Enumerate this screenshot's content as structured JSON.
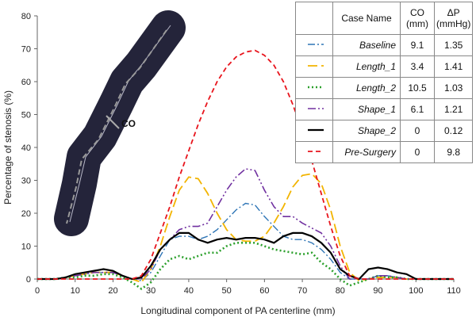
{
  "chart_data": {
    "type": "line",
    "xlabel": "Longitudinal component of PA centerline (mm)",
    "ylabel": "Percentage of stenosis (%)",
    "annotation": "CO",
    "xlim": [
      0,
      110
    ],
    "xticks": [
      0,
      10,
      20,
      30,
      40,
      50,
      60,
      70,
      80,
      90,
      100,
      110
    ],
    "ylim": [
      0,
      80
    ],
    "yticks": [
      0,
      10,
      20,
      30,
      40,
      50,
      60,
      70,
      80
    ],
    "grid": false,
    "table_columns": [
      "Case Name",
      "CO (mm)",
      "ΔP (mmHg)"
    ],
    "x": [
      0,
      2.5,
      5,
      7.5,
      10,
      12.5,
      15,
      17.5,
      20,
      22.5,
      25,
      27.5,
      30,
      32.5,
      35,
      37.5,
      40,
      42.5,
      45,
      47.5,
      50,
      52.5,
      55,
      57.5,
      60,
      62.5,
      65,
      67.5,
      70,
      72.5,
      75,
      77.5,
      80,
      82.5,
      85,
      87.5,
      90,
      92.5,
      95,
      97.5,
      100,
      102.5,
      105,
      107.5,
      110
    ],
    "series": [
      {
        "name": "Baseline",
        "color": "#2e75b6",
        "dash": "9,3,2,3",
        "width": 1.4,
        "co": 9.1,
        "dp": 1.35,
        "values": [
          0,
          0,
          0,
          0.5,
          1,
          1.5,
          2,
          2,
          2,
          1,
          0,
          -0.5,
          2,
          7,
          12,
          13,
          13,
          12,
          13,
          15,
          18,
          21,
          23,
          22.5,
          19,
          16,
          13,
          12,
          12,
          11,
          9,
          6,
          2,
          0,
          0,
          0,
          1,
          1,
          0.5,
          0,
          0,
          0,
          0,
          0,
          0
        ]
      },
      {
        "name": "Length_1",
        "color": "#f2b400",
        "dash": "12,5",
        "width": 1.8,
        "co": 3.4,
        "dp": 1.41,
        "values": [
          0,
          0,
          0,
          0.5,
          1,
          1.5,
          2,
          2,
          2,
          1,
          0,
          -1,
          3,
          10,
          19,
          27,
          31,
          30.5,
          26,
          20,
          15,
          12,
          11.5,
          11.5,
          13,
          17,
          22,
          28,
          31.5,
          32,
          29,
          21,
          10,
          2,
          -0.5,
          0,
          0.5,
          0.5,
          0.5,
          0,
          0,
          0,
          0,
          0,
          0
        ]
      },
      {
        "name": "Length_2",
        "color": "#2ca02c",
        "dash": "2,3",
        "width": 2.6,
        "co": 10.5,
        "dp": 1.03,
        "values": [
          0,
          0,
          0,
          0.5,
          0.5,
          1,
          1,
          1.5,
          1.5,
          0.5,
          -1,
          -3,
          -1,
          3,
          6,
          7,
          6,
          7,
          8,
          8,
          10,
          11,
          11,
          11,
          10,
          9,
          8.5,
          8,
          7.5,
          8,
          5,
          3,
          0,
          -2,
          -1,
          0,
          1,
          0.5,
          0.5,
          0,
          0,
          0,
          0,
          0,
          0
        ]
      },
      {
        "name": "Shape_1",
        "color": "#7030a0",
        "dash": "10,3,2,3,2,3",
        "width": 1.6,
        "co": 6.1,
        "dp": 1.21,
        "values": [
          0,
          0,
          0,
          0.5,
          1,
          1.5,
          2,
          2,
          2,
          1,
          0,
          0,
          3,
          9,
          12,
          15,
          16,
          16,
          17,
          22,
          27,
          31,
          33.5,
          33,
          27,
          22,
          19,
          19,
          17,
          15.5,
          14,
          10,
          4,
          0,
          0,
          0,
          1,
          1,
          0.5,
          0,
          0,
          0,
          0,
          0,
          0
        ]
      },
      {
        "name": "Shape_2",
        "color": "#000000",
        "dash": "none",
        "width": 2.2,
        "co": 0,
        "dp": 0.12,
        "values": [
          0,
          0,
          0,
          0.5,
          1.5,
          2,
          2.5,
          3,
          2.5,
          1,
          0,
          0.5,
          4,
          9,
          12,
          14,
          14,
          12,
          11,
          12,
          12.5,
          12,
          12.5,
          12.5,
          12,
          11,
          13,
          14,
          14,
          13,
          11,
          8,
          3,
          1,
          0,
          3,
          3.5,
          3,
          2,
          1.5,
          0,
          0,
          0,
          0,
          0
        ]
      },
      {
        "name": "Pre-Surgery",
        "color": "#e8141c",
        "dash": "6,4",
        "width": 1.8,
        "co": 0,
        "dp": 9.8,
        "values": [
          0,
          0,
          0,
          0,
          0,
          0,
          0,
          0,
          0,
          0,
          0,
          1,
          6,
          14,
          22,
          31,
          39,
          47,
          54,
          60,
          64.5,
          67.5,
          69,
          69.5,
          68,
          65,
          60,
          53,
          45,
          36,
          26,
          16,
          7,
          1,
          0,
          0,
          0,
          0,
          0,
          0,
          0,
          0,
          0,
          0,
          0
        ]
      }
    ]
  }
}
